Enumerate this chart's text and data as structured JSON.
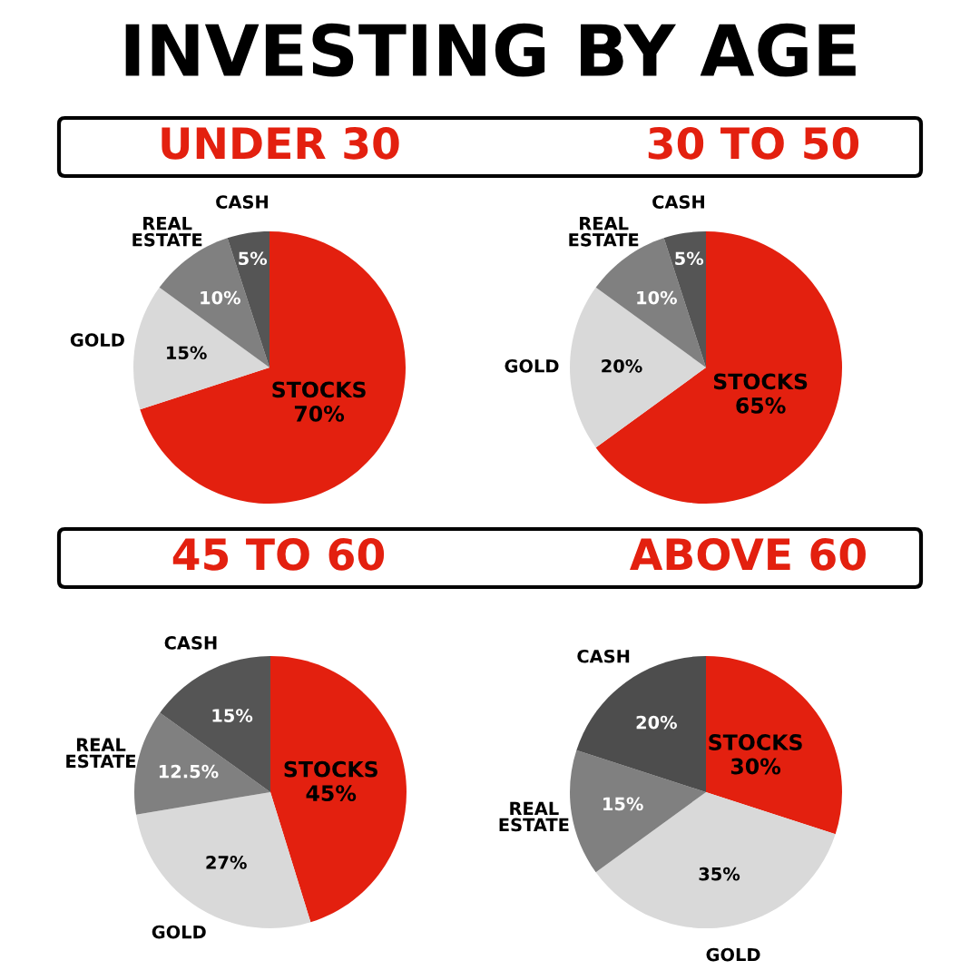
{
  "chart_data": [
    {
      "type": "pie",
      "title": "UNDER 30",
      "annotations": [
        "INVESTING BY AGE"
      ],
      "categories": [
        "STOCKS",
        "GOLD",
        "REAL\nESTATE",
        "CASH"
      ],
      "values": [
        70,
        15,
        10,
        5
      ],
      "colors": [
        "#e3200f",
        "#d9d9d9",
        "#808080",
        "#555555"
      ],
      "value_labels": [
        "70%",
        "15%",
        "10%",
        "5%"
      ]
    },
    {
      "type": "pie",
      "title": "30 TO 50",
      "categories": [
        "STOCKS",
        "GOLD",
        "REAL\nESTATE",
        "CASH"
      ],
      "values": [
        65,
        20,
        10,
        5
      ],
      "colors": [
        "#e3200f",
        "#d9d9d9",
        "#808080",
        "#555555"
      ],
      "value_labels": [
        "65%",
        "20%",
        "10%",
        "5%"
      ]
    },
    {
      "type": "pie",
      "title": "45 TO 60",
      "categories": [
        "STOCKS",
        "GOLD",
        "REAL\nESTATE",
        "CASH"
      ],
      "values": [
        45,
        27,
        12.5,
        15
      ],
      "colors": [
        "#e3200f",
        "#d9d9d9",
        "#808080",
        "#555555"
      ],
      "value_labels": [
        "45%",
        "27%",
        "12.5%",
        "15%"
      ]
    },
    {
      "type": "pie",
      "title": "ABOVE 60",
      "categories": [
        "STOCKS",
        "GOLD",
        "REAL\nESTATE",
        "CASH"
      ],
      "values": [
        30,
        35,
        15,
        20
      ],
      "colors": [
        "#e3200f",
        "#d9d9d9",
        "#808080",
        "#4d4d4d"
      ],
      "value_labels": [
        "30%",
        "35%",
        "15%",
        "20%"
      ]
    }
  ]
}
